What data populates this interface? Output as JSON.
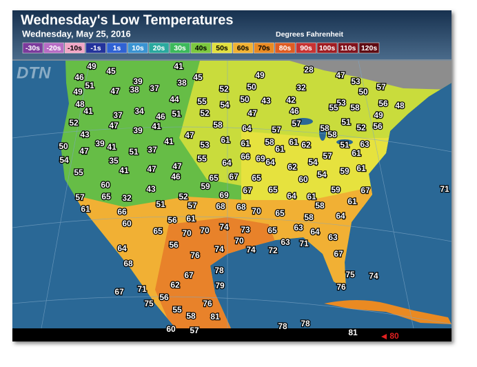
{
  "header": {
    "title": "Wednesday's Low Temperatures",
    "subtitle": "Wednesday, May 25, 2016",
    "units": "Degrees Fahrenheit"
  },
  "logo": "DTN",
  "legend": [
    {
      "label": "-30s",
      "color": "#7b3a9c"
    },
    {
      "label": "-20s",
      "color": "#b86cc4"
    },
    {
      "label": "-10s",
      "color": "#f2a6c6"
    },
    {
      "label": "-1s",
      "color": "#23339c"
    },
    {
      "label": "1s",
      "color": "#2f62d4"
    },
    {
      "label": "10s",
      "color": "#3a93d2"
    },
    {
      "label": "20s",
      "color": "#2aa99f"
    },
    {
      "label": "30s",
      "color": "#3cba5c"
    },
    {
      "label": "40s",
      "color": "#7cc83e"
    },
    {
      "label": "50s",
      "color": "#e2e03e"
    },
    {
      "label": "60s",
      "color": "#f2b232"
    },
    {
      "label": "70s",
      "color": "#ea8a22"
    },
    {
      "label": "80s",
      "color": "#e05c22"
    },
    {
      "label": "90s",
      "color": "#c83232"
    },
    {
      "label": "100s",
      "color": "#a01c22"
    },
    {
      "label": "110s",
      "color": "#80121c"
    },
    {
      "label": "120s",
      "color": "#5e0a12"
    }
  ],
  "temperatures": [
    49,
    45,
    41,
    28,
    46,
    39,
    45,
    49,
    47,
    53,
    51,
    38,
    52,
    50,
    32,
    57,
    49,
    47,
    38,
    37,
    50,
    48,
    44,
    55,
    50,
    43,
    42,
    53,
    55,
    58,
    56,
    48,
    41,
    37,
    34,
    46,
    51,
    52,
    54,
    47,
    46,
    49,
    52,
    47,
    41,
    58,
    64,
    57,
    57,
    51,
    52,
    56,
    58,
    58,
    43,
    39,
    47,
    39,
    41,
    51,
    37,
    41,
    61,
    61,
    58,
    61,
    62,
    51,
    63,
    50,
    47,
    53,
    61,
    69,
    57,
    61,
    54,
    35,
    55,
    64,
    66,
    64,
    54,
    59,
    61,
    55,
    41,
    47,
    47,
    62,
    54,
    46,
    65,
    67,
    65,
    60,
    59,
    67,
    65,
    59,
    67,
    71,
    60,
    43,
    69,
    64,
    61,
    57,
    65,
    32,
    52,
    51,
    57,
    68,
    68,
    70,
    65,
    58,
    61,
    61,
    66,
    56,
    61,
    64,
    60,
    65,
    70,
    70,
    74,
    73,
    65,
    63,
    58,
    64,
    63,
    70,
    63,
    71,
    64,
    56,
    74,
    74,
    72,
    67,
    68,
    76,
    78,
    75,
    74,
    67,
    71,
    62,
    67,
    79,
    76,
    75,
    56,
    76,
    55,
    58,
    81,
    78,
    78,
    81,
    60,
    57
  ],
  "arrow_label": 80
}
